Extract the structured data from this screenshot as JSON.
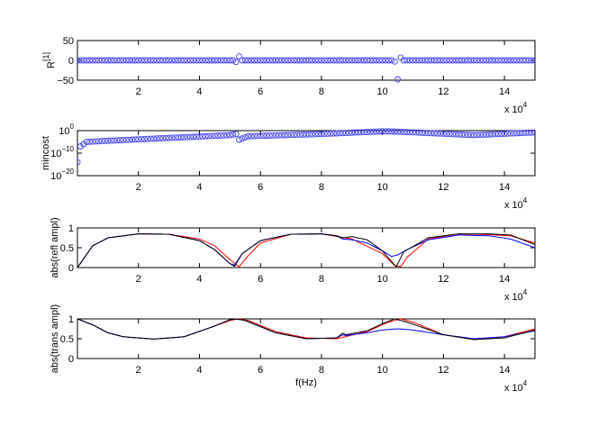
{
  "chart_data": [
    {
      "type": "scatter",
      "ylabel_base": "R",
      "ylabel_sup": "[1]",
      "xlim": [
        0,
        150000
      ],
      "ylim": [
        -50,
        50
      ],
      "xticks": [
        20000,
        40000,
        60000,
        80000,
        100000,
        120000,
        140000
      ],
      "xtick_labels": [
        "2",
        "4",
        "6",
        "8",
        "10",
        "12",
        "14"
      ],
      "yticks": [
        -50,
        0,
        50
      ],
      "ytick_labels": [
        "−50",
        "0",
        "50"
      ],
      "multiplier_base": "x 10",
      "multiplier_exp": "4",
      "marker": "circle",
      "color": "#4444ee",
      "series": [
        {
          "x_start": 0,
          "x_step": 1000,
          "count": 151,
          "baseline": 0,
          "outliers": [
            [
              52000,
              -4
            ],
            [
              53000,
              10
            ],
            [
              104000,
              -3
            ],
            [
              105000,
              -48
            ],
            [
              106000,
              7
            ]
          ]
        }
      ]
    },
    {
      "type": "scatter",
      "ylabel": "mincost",
      "yscale": "log",
      "xlim": [
        0,
        150000
      ],
      "ylim_exp": [
        -20,
        0
      ],
      "xticks": [
        20000,
        40000,
        60000,
        80000,
        100000,
        120000,
        140000
      ],
      "xtick_labels": [
        "2",
        "4",
        "6",
        "8",
        "10",
        "12",
        "14"
      ],
      "ytick_exps": [
        -20,
        -10,
        0
      ],
      "ytick_base": "10",
      "ytick_exp_labels": [
        "−20",
        "−10",
        "0"
      ],
      "multiplier_base": "x 10",
      "multiplier_exp": "4",
      "marker": "circle",
      "color": "#4444ee",
      "series": [
        {
          "x_start": 0,
          "x_step": 1000,
          "count": 151,
          "log10_profile": [
            [
              0,
              -14
            ],
            [
              1000,
              -7
            ],
            [
              3000,
              -5
            ],
            [
              10000,
              -4.5
            ],
            [
              50000,
              -2
            ],
            [
              52000,
              -1.5
            ],
            [
              53000,
              -4
            ],
            [
              56000,
              -2.5
            ],
            [
              80000,
              -1.5
            ],
            [
              100000,
              -0.3
            ],
            [
              104000,
              -0.4
            ],
            [
              130000,
              -2
            ],
            [
              150000,
              -0.8
            ]
          ]
        }
      ]
    },
    {
      "type": "line",
      "ylabel": "abs(refl ampl)",
      "xlim": [
        0,
        150000
      ],
      "ylim": [
        0,
        1
      ],
      "xticks": [
        20000,
        40000,
        60000,
        80000,
        100000,
        120000,
        140000
      ],
      "xtick_labels": [
        "2",
        "4",
        "6",
        "8",
        "10",
        "12",
        "14"
      ],
      "yticks": [
        0,
        0.5,
        1
      ],
      "ytick_labels": [
        "0",
        "0.5",
        "1"
      ],
      "multiplier_base": "x 10",
      "multiplier_exp": "4",
      "series": [
        {
          "color": "#ff0000",
          "x": [
            0,
            5000,
            10000,
            20000,
            30000,
            40000,
            45000,
            50000,
            53000,
            56000,
            60000,
            70000,
            80000,
            90000,
            100000,
            104000,
            106000,
            108000,
            115000,
            125000,
            135000,
            142000,
            150000
          ],
          "y": [
            0,
            0.55,
            0.75,
            0.85,
            0.84,
            0.72,
            0.55,
            0.2,
            0.02,
            0.3,
            0.62,
            0.84,
            0.85,
            0.72,
            0.35,
            0.05,
            0.02,
            0.25,
            0.72,
            0.85,
            0.83,
            0.8,
            0.62
          ]
        },
        {
          "color": "#0000ff",
          "x": [
            0,
            5000,
            10000,
            20000,
            30000,
            40000,
            45000,
            50000,
            51500,
            54000,
            60000,
            70000,
            80000,
            85000,
            87000,
            90000,
            95000,
            100000,
            103000,
            105000,
            108000,
            115000,
            125000,
            135000,
            142000,
            150000
          ],
          "y": [
            0,
            0.55,
            0.75,
            0.85,
            0.84,
            0.68,
            0.45,
            0.1,
            0.06,
            0.35,
            0.68,
            0.84,
            0.85,
            0.8,
            0.72,
            0.7,
            0.62,
            0.42,
            0.28,
            0.32,
            0.45,
            0.7,
            0.82,
            0.8,
            0.72,
            0.5
          ]
        },
        {
          "color": "#000000",
          "x": [
            0,
            5000,
            10000,
            20000,
            30000,
            40000,
            45000,
            50000,
            51500,
            54000,
            60000,
            70000,
            80000,
            85000,
            87000,
            90000,
            95000,
            100000,
            103000,
            104500,
            107000,
            115000,
            125000,
            135000,
            142000,
            150000
          ],
          "y": [
            0,
            0.55,
            0.75,
            0.85,
            0.84,
            0.68,
            0.45,
            0.1,
            0.03,
            0.35,
            0.68,
            0.84,
            0.85,
            0.8,
            0.75,
            0.78,
            0.7,
            0.42,
            0.15,
            0.02,
            0.4,
            0.75,
            0.85,
            0.85,
            0.82,
            0.58
          ]
        }
      ]
    },
    {
      "type": "line",
      "ylabel": "abs(trans ampl)",
      "xlabel": "f(Hz)",
      "xlim": [
        0,
        150000
      ],
      "ylim": [
        0,
        1
      ],
      "xticks": [
        20000,
        40000,
        60000,
        80000,
        100000,
        120000,
        140000
      ],
      "xtick_labels": [
        "2",
        "4",
        "6",
        "8",
        "10",
        "12",
        "14"
      ],
      "yticks": [
        0,
        0.5,
        1
      ],
      "ytick_labels": [
        "0",
        "0.5",
        "1"
      ],
      "multiplier_base": "x 10",
      "multiplier_exp": "4",
      "series": [
        {
          "color": "#ff0000",
          "x": [
            0,
            5000,
            10000,
            15000,
            25000,
            35000,
            45000,
            50000,
            53000,
            56000,
            65000,
            75000,
            85000,
            95000,
            102000,
            106000,
            110000,
            120000,
            130000,
            140000,
            150000
          ],
          "y": [
            1,
            0.85,
            0.65,
            0.55,
            0.49,
            0.55,
            0.82,
            0.96,
            1,
            0.96,
            0.68,
            0.52,
            0.5,
            0.68,
            0.92,
            1,
            0.92,
            0.6,
            0.48,
            0.55,
            0.75
          ]
        },
        {
          "color": "#0000ff",
          "x": [
            0,
            5000,
            10000,
            15000,
            25000,
            35000,
            45000,
            50000,
            52000,
            55000,
            65000,
            75000,
            85000,
            87000,
            88000,
            95000,
            100000,
            105000,
            110000,
            120000,
            130000,
            140000,
            150000
          ],
          "y": [
            1,
            0.85,
            0.65,
            0.55,
            0.49,
            0.55,
            0.82,
            0.98,
            1,
            0.96,
            0.65,
            0.5,
            0.52,
            0.6,
            0.58,
            0.65,
            0.72,
            0.75,
            0.72,
            0.6,
            0.5,
            0.55,
            0.7
          ]
        },
        {
          "color": "#000000",
          "x": [
            0,
            5000,
            10000,
            15000,
            25000,
            35000,
            45000,
            50000,
            52000,
            55000,
            65000,
            75000,
            85000,
            87000,
            88000,
            95000,
            100000,
            104000,
            108000,
            120000,
            130000,
            140000,
            150000
          ],
          "y": [
            1,
            0.85,
            0.65,
            0.55,
            0.49,
            0.55,
            0.82,
            0.98,
            1,
            0.96,
            0.65,
            0.5,
            0.52,
            0.64,
            0.6,
            0.7,
            0.88,
            1,
            0.92,
            0.6,
            0.48,
            0.52,
            0.72
          ]
        }
      ]
    }
  ]
}
